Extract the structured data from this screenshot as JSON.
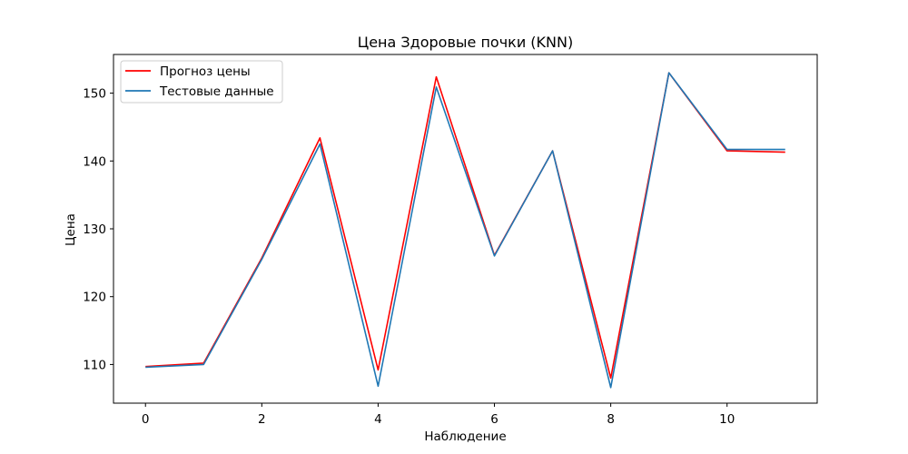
{
  "chart_data": {
    "type": "line",
    "title": "Цена Здоровые почки  (KNN)",
    "xlabel": "Наблюдение",
    "ylabel": "Цена",
    "xlim": [
      -0.55,
      11.55
    ],
    "ylim": [
      104.3,
      155.7
    ],
    "xticks": [
      0,
      2,
      4,
      6,
      8,
      10
    ],
    "yticks": [
      110,
      120,
      130,
      140,
      150
    ],
    "grid": false,
    "legend_position": "upper-left",
    "x": [
      0,
      1,
      2,
      3,
      4,
      5,
      6,
      7,
      8,
      9,
      10,
      11
    ],
    "series": [
      {
        "name": "Прогноз цены",
        "color": "#ff0000",
        "values": [
          109.7,
          110.2,
          125.7,
          143.4,
          109.2,
          152.4,
          126.1,
          141.5,
          108.0,
          153.0,
          141.5,
          141.3
        ]
      },
      {
        "name": "Тестовые данные",
        "color": "#1f77b4",
        "values": [
          109.6,
          110.0,
          125.5,
          142.5,
          106.8,
          150.9,
          126.0,
          141.5,
          106.6,
          153.0,
          141.7,
          141.7
        ]
      }
    ]
  }
}
